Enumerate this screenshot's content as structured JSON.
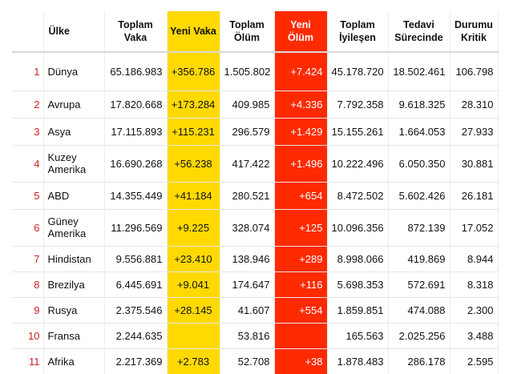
{
  "colors": {
    "new_cases": "#ffd900",
    "new_deaths": "#ff2a00",
    "rank": "#d02020"
  },
  "headers": {
    "country": "Ülke",
    "total_cases": "Toplam Vaka",
    "new_cases": "Yeni Vaka",
    "total_deaths": "Toplam Ölüm",
    "new_deaths": "Yeni Ölüm",
    "total_recovered": "Toplam İyileşen",
    "active": "Tedavi Sürecinde",
    "critical": "Durumu Kritik"
  },
  "rows": [
    {
      "rank": "1",
      "country": "Dünya",
      "total_cases": "65.186.983",
      "new_cases": "+356.786",
      "total_deaths": "1.505.802",
      "new_deaths": "+7.424",
      "total_recovered": "45.178.720",
      "active": "18.502.461",
      "critical": "106.798"
    },
    {
      "rank": "2",
      "country": "Avrupa",
      "total_cases": "17.820.668",
      "new_cases": "+173.284",
      "total_deaths": "409.985",
      "new_deaths": "+4.336",
      "total_recovered": "7.792.358",
      "active": "9.618.325",
      "critical": "28.310"
    },
    {
      "rank": "3",
      "country": "Asya",
      "total_cases": "17.115.893",
      "new_cases": "+115.231",
      "total_deaths": "296.579",
      "new_deaths": "+1.429",
      "total_recovered": "15.155.261",
      "active": "1.664.053",
      "critical": "27.933"
    },
    {
      "rank": "4",
      "country": "Kuzey Amerika",
      "total_cases": "16.690.268",
      "new_cases": "+56.238",
      "total_deaths": "417.422",
      "new_deaths": "+1.496",
      "total_recovered": "10.222.496",
      "active": "6.050.350",
      "critical": "30.881"
    },
    {
      "rank": "5",
      "country": "ABD",
      "total_cases": "14.355.449",
      "new_cases": "+41.184",
      "total_deaths": "280.521",
      "new_deaths": "+654",
      "total_recovered": "8.472.502",
      "active": "5.602.426",
      "critical": "26.181"
    },
    {
      "rank": "6",
      "country": "Güney Amerika",
      "total_cases": "11.296.569",
      "new_cases": "+9.225",
      "total_deaths": "328.074",
      "new_deaths": "+125",
      "total_recovered": "10.096.356",
      "active": "872.139",
      "critical": "17.052"
    },
    {
      "rank": "7",
      "country": "Hindistan",
      "total_cases": "9.556.881",
      "new_cases": "+23.410",
      "total_deaths": "138.946",
      "new_deaths": "+289",
      "total_recovered": "8.998.066",
      "active": "419.869",
      "critical": "8.944"
    },
    {
      "rank": "8",
      "country": "Brezilya",
      "total_cases": "6.445.691",
      "new_cases": "+9.041",
      "total_deaths": "174.647",
      "new_deaths": "+116",
      "total_recovered": "5.698.353",
      "active": "572.691",
      "critical": "8.318"
    },
    {
      "rank": "9",
      "country": "Rusya",
      "total_cases": "2.375.546",
      "new_cases": "+28.145",
      "total_deaths": "41.607",
      "new_deaths": "+554",
      "total_recovered": "1.859.851",
      "active": "474.088",
      "critical": "2.300"
    },
    {
      "rank": "10",
      "country": "Fransa",
      "total_cases": "2.244.635",
      "new_cases": "",
      "total_deaths": "53.816",
      "new_deaths": "",
      "total_recovered": "165.563",
      "active": "2.025.256",
      "critical": "3.488"
    },
    {
      "rank": "11",
      "country": "Afrika",
      "total_cases": "2.217.369",
      "new_cases": "+2.783",
      "total_deaths": "52.708",
      "new_deaths": "+38",
      "total_recovered": "1.878.483",
      "active": "286.178",
      "critical": "2.595"
    }
  ]
}
